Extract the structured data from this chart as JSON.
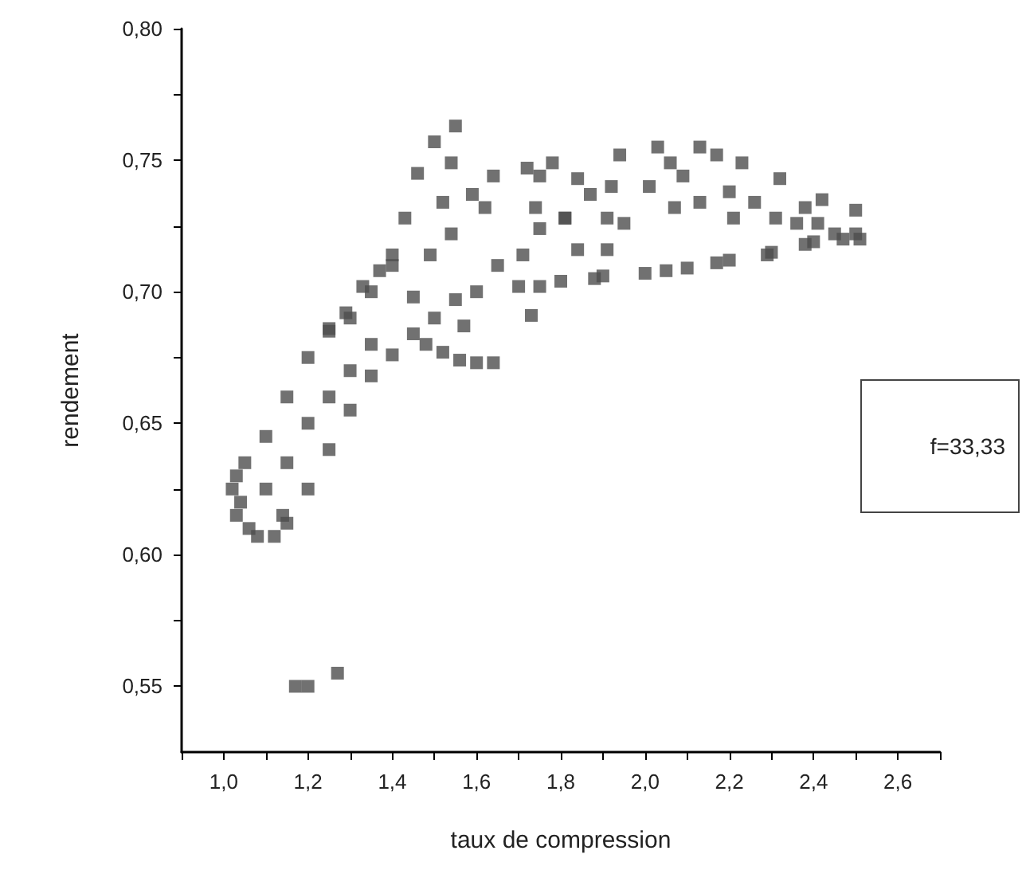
{
  "chart_data": {
    "type": "scatter",
    "xlabel": "taux de compression",
    "ylabel": "rendement",
    "marker": "square",
    "annotations": [
      "f=33,33"
    ],
    "xlim": [
      0.9,
      2.7
    ],
    "xticks": [
      {
        "value": 0.9,
        "label": null
      },
      {
        "value": 1.0,
        "label": "1,0"
      },
      {
        "value": 1.1,
        "label": null
      },
      {
        "value": 1.2,
        "label": "1,2"
      },
      {
        "value": 1.3,
        "label": null
      },
      {
        "value": 1.4,
        "label": "1,4"
      },
      {
        "value": 1.5,
        "label": null
      },
      {
        "value": 1.6,
        "label": "1,6"
      },
      {
        "value": 1.7,
        "label": null
      },
      {
        "value": 1.8,
        "label": "1,8"
      },
      {
        "value": 1.9,
        "label": null
      },
      {
        "value": 2.0,
        "label": "2,0"
      },
      {
        "value": 2.1,
        "label": null
      },
      {
        "value": 2.2,
        "label": "2,2"
      },
      {
        "value": 2.3,
        "label": null
      },
      {
        "value": 2.4,
        "label": "2,4"
      },
      {
        "value": 2.5,
        "label": null
      },
      {
        "value": 2.6,
        "label": "2,6"
      },
      {
        "value": 2.7,
        "label": null
      }
    ],
    "ylim": [
      0.525,
      0.8
    ],
    "yticks": [
      {
        "value": 0.55,
        "label": "0,55"
      },
      {
        "value": 0.575,
        "label": null
      },
      {
        "value": 0.6,
        "label": "0,60"
      },
      {
        "value": 0.625,
        "label": null
      },
      {
        "value": 0.65,
        "label": "0,65"
      },
      {
        "value": 0.675,
        "label": null
      },
      {
        "value": 0.7,
        "label": "0,70"
      },
      {
        "value": 0.725,
        "label": null
      },
      {
        "value": 0.75,
        "label": "0,75"
      },
      {
        "value": 0.775,
        "label": null
      },
      {
        "value": 0.8,
        "label": "0,80"
      }
    ],
    "series": [
      {
        "color": "#4d4d4d",
        "x": [
          1.15,
          1.2,
          1.25,
          1.3,
          1.35,
          1.4,
          1.45,
          1.5,
          1.55,
          1.6,
          1.7,
          1.75,
          1.8,
          1.88,
          1.9,
          2.0,
          2.05,
          2.1,
          2.17,
          2.2,
          2.29,
          2.3,
          2.38,
          2.4,
          2.47,
          2.5,
          1.03,
          1.05,
          1.1,
          1.15,
          1.2,
          1.25,
          1.3,
          1.35,
          1.4,
          1.02,
          1.03,
          1.06,
          1.08,
          1.12,
          1.14,
          1.04,
          1.1,
          1.15,
          1.2,
          1.25,
          1.3,
          1.35,
          1.48,
          1.52,
          1.56,
          1.6,
          1.64,
          1.55,
          1.5,
          1.46,
          1.54,
          1.72,
          1.78,
          1.81,
          1.73,
          1.64,
          1.62,
          1.43,
          1.4,
          1.33,
          1.29,
          1.25,
          1.57,
          1.45,
          1.54,
          1.71,
          1.74,
          1.59,
          1.52,
          1.65,
          1.49,
          1.37,
          1.75,
          1.94,
          2.03,
          2.13,
          2.17,
          2.23,
          2.32,
          2.42,
          2.5,
          2.51,
          1.92,
          1.91,
          1.91,
          2.01,
          2.07,
          2.13,
          2.21,
          2.26,
          2.31,
          2.36,
          2.41,
          2.45,
          1.95,
          2.06,
          2.09,
          2.2,
          2.38,
          1.84,
          1.87,
          1.81,
          1.84,
          1.75,
          1.17,
          1.2,
          1.27
        ],
        "values": [
          0.612,
          0.625,
          0.64,
          0.655,
          0.668,
          0.676,
          0.684,
          0.69,
          0.697,
          0.7,
          0.702,
          0.702,
          0.704,
          0.705,
          0.706,
          0.707,
          0.708,
          0.709,
          0.711,
          0.712,
          0.714,
          0.715,
          0.718,
          0.719,
          0.72,
          0.722,
          0.63,
          0.635,
          0.645,
          0.66,
          0.675,
          0.685,
          0.69,
          0.7,
          0.71,
          0.625,
          0.615,
          0.61,
          0.607,
          0.607,
          0.615,
          0.62,
          0.625,
          0.635,
          0.65,
          0.66,
          0.67,
          0.68,
          0.68,
          0.677,
          0.674,
          0.673,
          0.673,
          0.763,
          0.757,
          0.745,
          0.749,
          0.747,
          0.749,
          0.728,
          0.691,
          0.744,
          0.732,
          0.728,
          0.714,
          0.702,
          0.692,
          0.686,
          0.687,
          0.698,
          0.722,
          0.714,
          0.732,
          0.737,
          0.734,
          0.71,
          0.714,
          0.708,
          0.744,
          0.752,
          0.755,
          0.755,
          0.752,
          0.749,
          0.743,
          0.735,
          0.731,
          0.72,
          0.74,
          0.728,
          0.716,
          0.74,
          0.732,
          0.734,
          0.728,
          0.734,
          0.728,
          0.726,
          0.726,
          0.722,
          0.726,
          0.749,
          0.744,
          0.738,
          0.732,
          0.743,
          0.737,
          0.728,
          0.716,
          0.724,
          0.55,
          0.55,
          0.555
        ]
      }
    ]
  }
}
